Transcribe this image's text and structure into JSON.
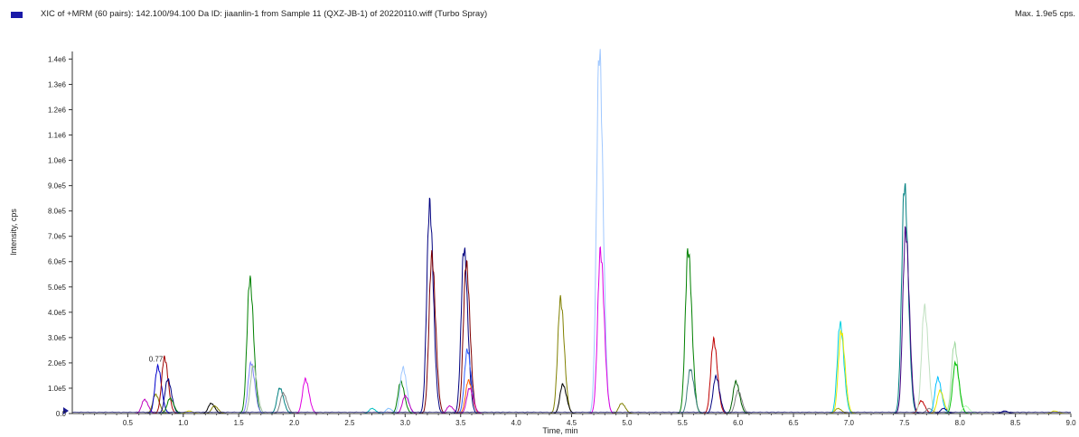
{
  "chart_data": {
    "type": "line",
    "title": "XIC of +MRM (60 pairs): 142.100/94.100 Da ID: jiaanlin-1 from Sample 11 (QXZ-JB-1) of 20220110.wiff (Turbo Spray)",
    "max_label": "Max. 1.9e5 cps.",
    "xlabel": "Time, min",
    "ylabel": "Intensity, cps",
    "xlim": [
      0.0,
      9.0
    ],
    "ylim": [
      0,
      1430000
    ],
    "xticks": [
      {
        "v": 0.5,
        "label": "0.5"
      },
      {
        "v": 1.0,
        "label": "1.0"
      },
      {
        "v": 1.5,
        "label": "1.5"
      },
      {
        "v": 2.0,
        "label": "2.0"
      },
      {
        "v": 2.5,
        "label": "2.5"
      },
      {
        "v": 3.0,
        "label": "3.0"
      },
      {
        "v": 3.5,
        "label": "3.5"
      },
      {
        "v": 4.0,
        "label": "4.0"
      },
      {
        "v": 4.5,
        "label": "4.5"
      },
      {
        "v": 5.0,
        "label": "5.0"
      },
      {
        "v": 5.5,
        "label": "5.5"
      },
      {
        "v": 6.0,
        "label": "6.0"
      },
      {
        "v": 6.5,
        "label": "6.5"
      },
      {
        "v": 7.0,
        "label": "7.0"
      },
      {
        "v": 7.5,
        "label": "7.5"
      },
      {
        "v": 8.0,
        "label": "8.0"
      },
      {
        "v": 8.5,
        "label": "8.5"
      },
      {
        "v": 9.0,
        "label": "9.0"
      }
    ],
    "yticks": [
      {
        "v": 0,
        "label": "0.0"
      },
      {
        "v": 100000,
        "label": "1.0e5"
      },
      {
        "v": 200000,
        "label": "2.0e5"
      },
      {
        "v": 300000,
        "label": "3.0e5"
      },
      {
        "v": 400000,
        "label": "4.0e5"
      },
      {
        "v": 500000,
        "label": "5.0e5"
      },
      {
        "v": 600000,
        "label": "6.0e5"
      },
      {
        "v": 700000,
        "label": "7.0e5"
      },
      {
        "v": 800000,
        "label": "8.0e5"
      },
      {
        "v": 900000,
        "label": "9.0e5"
      },
      {
        "v": 1000000,
        "label": "1.0e6"
      },
      {
        "v": 1100000,
        "label": "1.1e6"
      },
      {
        "v": 1200000,
        "label": "1.2e6"
      },
      {
        "v": 1300000,
        "label": "1.3e6"
      },
      {
        "v": 1400000,
        "label": "1.4e6"
      }
    ],
    "annotations": [
      {
        "x": 0.77,
        "y": 190000,
        "text": "0.77"
      }
    ],
    "peaks": [
      {
        "x": 0.65,
        "y": 55000,
        "color": "#c000c0"
      },
      {
        "x": 0.75,
        "y": 75000,
        "color": "#808000"
      },
      {
        "x": 0.77,
        "y": 185000,
        "color": "#0000cc"
      },
      {
        "x": 0.83,
        "y": 220000,
        "color": "#a00000"
      },
      {
        "x": 0.86,
        "y": 135000,
        "color": "#000080"
      },
      {
        "x": 0.88,
        "y": 60000,
        "color": "#008000"
      },
      {
        "x": 1.05,
        "y": 10000,
        "color": "#d8d800"
      },
      {
        "x": 1.25,
        "y": 40000,
        "color": "#000000"
      },
      {
        "x": 1.28,
        "y": 30000,
        "color": "#808000"
      },
      {
        "x": 1.6,
        "y": 530000,
        "color": "#008000"
      },
      {
        "x": 1.61,
        "y": 200000,
        "color": "#8080ff"
      },
      {
        "x": 1.63,
        "y": 190000,
        "color": "#a0c0a0"
      },
      {
        "x": 1.87,
        "y": 100000,
        "color": "#008080"
      },
      {
        "x": 1.9,
        "y": 80000,
        "color": "#808080"
      },
      {
        "x": 2.1,
        "y": 135000,
        "color": "#e000e0"
      },
      {
        "x": 2.7,
        "y": 20000,
        "color": "#00c0c0"
      },
      {
        "x": 2.85,
        "y": 20000,
        "color": "#80c0ff"
      },
      {
        "x": 2.96,
        "y": 125000,
        "color": "#008000"
      },
      {
        "x": 2.98,
        "y": 180000,
        "color": "#a0c8ff"
      },
      {
        "x": 3.0,
        "y": 70000,
        "color": "#c000c0"
      },
      {
        "x": 3.22,
        "y": 825000,
        "color": "#000080"
      },
      {
        "x": 3.24,
        "y": 620000,
        "color": "#800000"
      },
      {
        "x": 3.4,
        "y": 30000,
        "color": "#c000c0"
      },
      {
        "x": 3.53,
        "y": 650000,
        "color": "#000080"
      },
      {
        "x": 3.55,
        "y": 595000,
        "color": "#800000"
      },
      {
        "x": 3.56,
        "y": 250000,
        "color": "#3060ff"
      },
      {
        "x": 3.57,
        "y": 130000,
        "color": "#ff6000"
      },
      {
        "x": 3.58,
        "y": 100000,
        "color": "#c000c0"
      },
      {
        "x": 4.4,
        "y": 450000,
        "color": "#808000"
      },
      {
        "x": 4.42,
        "y": 115000,
        "color": "#000000"
      },
      {
        "x": 4.75,
        "y": 1430000,
        "color": "#a0c8ff"
      },
      {
        "x": 4.76,
        "y": 640000,
        "color": "#e000e0"
      },
      {
        "x": 4.95,
        "y": 40000,
        "color": "#808000"
      },
      {
        "x": 5.55,
        "y": 645000,
        "color": "#008000"
      },
      {
        "x": 5.57,
        "y": 175000,
        "color": "#408080"
      },
      {
        "x": 5.78,
        "y": 290000,
        "color": "#c00000"
      },
      {
        "x": 5.8,
        "y": 145000,
        "color": "#000080"
      },
      {
        "x": 5.98,
        "y": 125000,
        "color": "#006000"
      },
      {
        "x": 6.0,
        "y": 90000,
        "color": "#808080"
      },
      {
        "x": 6.9,
        "y": 20000,
        "color": "#a0a000"
      },
      {
        "x": 6.92,
        "y": 355000,
        "color": "#00d0e0"
      },
      {
        "x": 6.93,
        "y": 325000,
        "color": "#e8e800"
      },
      {
        "x": 7.5,
        "y": 900000,
        "color": "#008080"
      },
      {
        "x": 7.51,
        "y": 720000,
        "color": "#400080"
      },
      {
        "x": 7.65,
        "y": 50000,
        "color": "#c00000"
      },
      {
        "x": 7.68,
        "y": 420000,
        "color": "#c0e0c0"
      },
      {
        "x": 7.72,
        "y": 20000,
        "color": "#808080"
      },
      {
        "x": 7.8,
        "y": 140000,
        "color": "#00c0ff"
      },
      {
        "x": 7.82,
        "y": 90000,
        "color": "#e8e800"
      },
      {
        "x": 7.85,
        "y": 20000,
        "color": "#000080"
      },
      {
        "x": 7.95,
        "y": 275000,
        "color": "#a0d8a0"
      },
      {
        "x": 7.96,
        "y": 200000,
        "color": "#00c000"
      },
      {
        "x": 8.05,
        "y": 30000,
        "color": "#b0ffb0"
      },
      {
        "x": 8.4,
        "y": 10000,
        "color": "#000080"
      },
      {
        "x": 8.85,
        "y": 10000,
        "color": "#e8e800"
      }
    ],
    "grid": false
  }
}
